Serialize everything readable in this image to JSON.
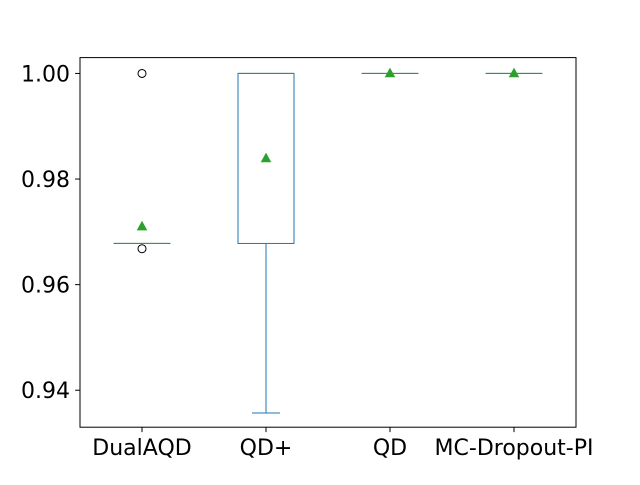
{
  "chart_data": {
    "type": "box",
    "title": "",
    "xlabel": "",
    "ylabel": "",
    "categories": [
      "DualAQD",
      "QD+",
      "QD",
      "MC-Dropout-PI"
    ],
    "boxes": [
      {
        "name": "DualAQD",
        "whisker_low": 0.9678,
        "q1": 0.9678,
        "median": 0.9678,
        "q3": 0.9678,
        "whisker_high": 0.9678,
        "mean": 0.971,
        "outliers": [
          1.0,
          0.9668
        ]
      },
      {
        "name": "QD+",
        "whisker_low": 0.9357,
        "q1": 0.9678,
        "median": 1.0,
        "q3": 1.0,
        "whisker_high": 1.0,
        "mean": 0.9839,
        "outliers": []
      },
      {
        "name": "QD",
        "whisker_low": 1.0,
        "q1": 1.0,
        "median": 1.0,
        "q3": 1.0,
        "whisker_high": 1.0,
        "mean": 1.0,
        "outliers": []
      },
      {
        "name": "MC-Dropout-PI",
        "whisker_low": 1.0,
        "q1": 1.0,
        "median": 1.0,
        "q3": 1.0,
        "whisker_high": 1.0,
        "mean": 1.0,
        "outliers": []
      }
    ],
    "ylim": [
      0.933,
      1.003
    ],
    "yticks": [
      0.94,
      0.96,
      0.98,
      1.0
    ],
    "ytick_labels": [
      "0.94",
      "0.96",
      "0.98",
      "1.00"
    ],
    "grid": false,
    "colors": {
      "box": "#1f77b4",
      "median": "#2ca02c",
      "mean_marker": "#2ca02c",
      "outlier": "#000000"
    }
  }
}
